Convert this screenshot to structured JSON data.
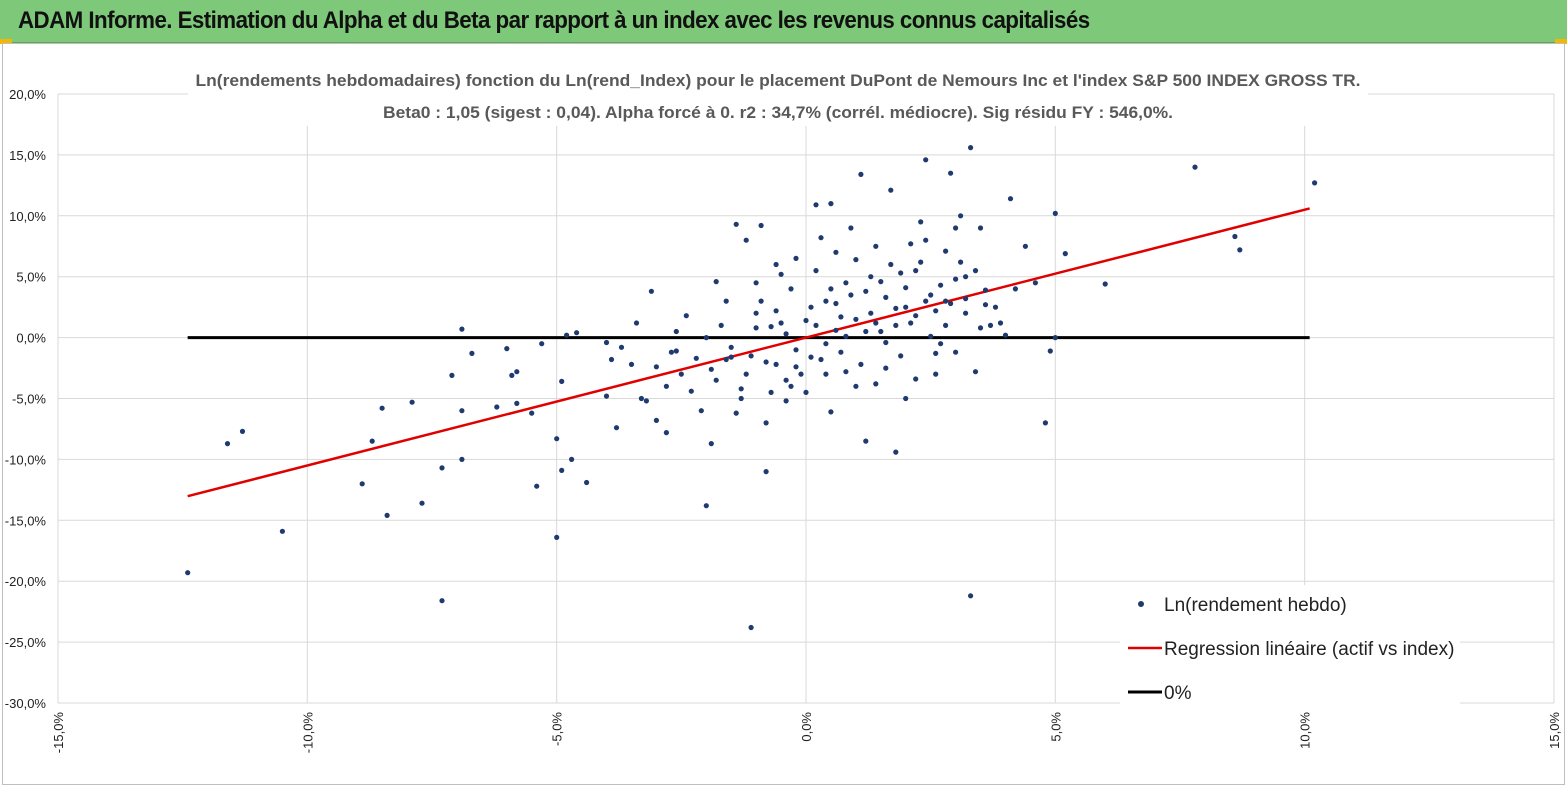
{
  "banner": {
    "title": "ADAM Informe. Estimation du Alpha et du Beta par rapport à un index avec les revenus connus capitalisés"
  },
  "colors": {
    "banner_bg": "#7ec87a",
    "accent": "#f2b705",
    "points": "#1f3a6e",
    "regression": "#e00000",
    "zero_line": "#000000",
    "grid": "#d9d9d9"
  },
  "chart_data": {
    "type": "scatter",
    "title": "Ln(rendements hebdomadaires) fonction du Ln(rend_Index) pour le placement DuPont de Nemours Inc et l'index S&P 500 INDEX GROSS TR.",
    "subtitle": "Beta0 : 1,05  (sigest : 0,04). Alpha forcé à 0. r2 : 34,7% (corrél. médiocre). Sig résidu FY : 546,0%.",
    "xlim": [
      -0.15,
      0.15
    ],
    "ylim": [
      -0.3,
      0.2
    ],
    "x_ticks": [
      "-15,0%",
      "-10,0%",
      "-5,0%",
      "0,0%",
      "5,0%",
      "10,0%",
      "15,0%"
    ],
    "y_ticks": [
      "20,0%",
      "15,0%",
      "10,0%",
      "5,0%",
      "0,0%",
      "-5,0%",
      "-10,0%",
      "-15,0%",
      "-20,0%",
      "-25,0%",
      "-30,0%"
    ],
    "grid": true,
    "legend_position": "bottom-right",
    "series": [
      {
        "name": "Ln(rendement hebdo)",
        "kind": "scatter",
        "points": [
          [
            -0.124,
            -0.193
          ],
          [
            -0.116,
            -0.087
          ],
          [
            -0.113,
            -0.077
          ],
          [
            -0.105,
            -0.159
          ],
          [
            -0.089,
            -0.12
          ],
          [
            -0.087,
            -0.085
          ],
          [
            -0.085,
            -0.058
          ],
          [
            -0.084,
            -0.146
          ],
          [
            -0.079,
            -0.053
          ],
          [
            -0.077,
            -0.136
          ],
          [
            -0.073,
            -0.216
          ],
          [
            -0.073,
            -0.107
          ],
          [
            -0.071,
            -0.031
          ],
          [
            -0.069,
            -0.06
          ],
          [
            -0.069,
            0.007
          ],
          [
            -0.069,
            -0.1
          ],
          [
            -0.067,
            -0.013
          ],
          [
            -0.062,
            -0.057
          ],
          [
            -0.06,
            -0.009
          ],
          [
            -0.059,
            -0.031
          ],
          [
            -0.058,
            -0.028
          ],
          [
            -0.058,
            -0.054
          ],
          [
            -0.055,
            -0.062
          ],
          [
            -0.054,
            -0.122
          ],
          [
            -0.053,
            -0.005
          ],
          [
            -0.05,
            -0.083
          ],
          [
            -0.05,
            -0.164
          ],
          [
            -0.049,
            -0.036
          ],
          [
            -0.049,
            -0.109
          ],
          [
            -0.048,
            0.002
          ],
          [
            -0.047,
            -0.1
          ],
          [
            -0.046,
            0.004
          ],
          [
            -0.044,
            -0.119
          ],
          [
            -0.04,
            -0.004
          ],
          [
            -0.039,
            -0.018
          ],
          [
            -0.038,
            -0.074
          ],
          [
            -0.034,
            0.012
          ],
          [
            -0.033,
            -0.05
          ],
          [
            -0.031,
            0.038
          ],
          [
            -0.03,
            -0.024
          ],
          [
            -0.028,
            -0.078
          ],
          [
            -0.026,
            -0.011
          ],
          [
            -0.024,
            0.018
          ],
          [
            -0.02,
            -0.138
          ],
          [
            -0.019,
            -0.087
          ],
          [
            -0.018,
            0.046
          ],
          [
            -0.016,
            -0.018
          ],
          [
            -0.015,
            -0.016
          ],
          [
            -0.014,
            0.093
          ],
          [
            -0.013,
            -0.05
          ],
          [
            -0.012,
            0.08
          ],
          [
            -0.011,
            -0.238
          ],
          [
            -0.01,
            0.02
          ],
          [
            -0.009,
            0.092
          ],
          [
            -0.008,
            -0.11
          ],
          [
            -0.007,
            0.009
          ],
          [
            -0.006,
            -0.022
          ],
          [
            -0.005,
            0.052
          ],
          [
            -0.004,
            -0.052
          ],
          [
            -0.003,
            -0.04
          ],
          [
            -0.002,
            -0.024
          ],
          [
            0.0,
            0.014
          ],
          [
            0.001,
            -0.016
          ],
          [
            0.002,
            0.109
          ],
          [
            0.003,
            0.082
          ],
          [
            0.004,
            0.03
          ],
          [
            0.005,
            0.11
          ],
          [
            0.005,
            -0.061
          ],
          [
            0.006,
            0.006
          ],
          [
            0.007,
            0.017
          ],
          [
            0.008,
            -0.028
          ],
          [
            0.009,
            0.09
          ],
          [
            0.01,
            0.064
          ],
          [
            0.011,
            0.134
          ],
          [
            0.012,
            -0.085
          ],
          [
            0.013,
            0.02
          ],
          [
            0.014,
            -0.038
          ],
          [
            0.015,
            0.046
          ],
          [
            0.016,
            0.033
          ],
          [
            0.017,
            0.121
          ],
          [
            0.018,
            -0.094
          ],
          [
            0.019,
            0.053
          ],
          [
            0.02,
            0.025
          ],
          [
            0.021,
            0.077
          ],
          [
            0.022,
            -0.034
          ],
          [
            0.023,
            0.095
          ],
          [
            0.024,
            0.146
          ],
          [
            0.025,
            0.001
          ],
          [
            0.026,
            -0.013
          ],
          [
            0.027,
            0.043
          ],
          [
            0.028,
            0.071
          ],
          [
            0.029,
            0.135
          ],
          [
            0.03,
            -0.012
          ],
          [
            0.031,
            0.1
          ],
          [
            0.032,
            0.032
          ],
          [
            0.033,
            -0.212
          ],
          [
            0.033,
            0.156
          ],
          [
            0.034,
            -0.028
          ],
          [
            0.035,
            0.09
          ],
          [
            0.036,
            0.039
          ],
          [
            0.037,
            0.01
          ],
          [
            0.039,
            0.012
          ],
          [
            0.04,
            0.002
          ],
          [
            0.041,
            0.114
          ],
          [
            0.042,
            0.04
          ],
          [
            0.044,
            0.075
          ],
          [
            0.046,
            0.045
          ],
          [
            0.048,
            -0.07
          ],
          [
            0.049,
            -0.011
          ],
          [
            0.05,
            0.102
          ],
          [
            0.05,
            0.0
          ],
          [
            0.052,
            0.069
          ],
          [
            0.06,
            0.044
          ],
          [
            0.078,
            0.14
          ],
          [
            0.086,
            0.083
          ],
          [
            0.087,
            0.072
          ],
          [
            0.102,
            0.127
          ],
          [
            -0.028,
            -0.04
          ],
          [
            -0.025,
            -0.03
          ],
          [
            -0.022,
            -0.017
          ],
          [
            -0.02,
            0.0
          ],
          [
            -0.018,
            -0.035
          ],
          [
            -0.015,
            -0.008
          ],
          [
            -0.012,
            -0.03
          ],
          [
            -0.01,
            0.008
          ],
          [
            -0.008,
            -0.02
          ],
          [
            -0.006,
            0.022
          ],
          [
            -0.004,
            0.003
          ],
          [
            -0.002,
            -0.01
          ],
          [
            0.002,
            0.01
          ],
          [
            0.004,
            -0.005
          ],
          [
            0.006,
            0.028
          ],
          [
            0.008,
            0.001
          ],
          [
            0.01,
            0.015
          ],
          [
            0.012,
            0.038
          ],
          [
            0.014,
            0.012
          ],
          [
            0.016,
            -0.004
          ],
          [
            0.018,
            0.024
          ],
          [
            0.02,
            0.041
          ],
          [
            0.022,
            0.018
          ],
          [
            0.024,
            0.03
          ],
          [
            0.026,
            0.022
          ],
          [
            0.028,
            0.01
          ],
          [
            0.03,
            0.048
          ],
          [
            0.032,
            0.02
          ],
          [
            0.034,
            0.055
          ],
          [
            0.036,
            0.027
          ],
          [
            -0.035,
            -0.022
          ],
          [
            -0.032,
            -0.052
          ],
          [
            -0.027,
            -0.012
          ],
          [
            -0.023,
            -0.044
          ],
          [
            -0.019,
            -0.026
          ],
          [
            -0.017,
            0.01
          ],
          [
            -0.013,
            -0.042
          ],
          [
            -0.011,
            -0.015
          ],
          [
            -0.009,
            0.03
          ],
          [
            -0.007,
            -0.045
          ],
          [
            -0.005,
            0.012
          ],
          [
            -0.003,
            0.04
          ],
          [
            -0.001,
            -0.03
          ],
          [
            0.001,
            0.025
          ],
          [
            0.003,
            -0.018
          ],
          [
            0.005,
            0.04
          ],
          [
            0.007,
            -0.012
          ],
          [
            0.009,
            0.035
          ],
          [
            0.011,
            -0.022
          ],
          [
            0.013,
            0.05
          ],
          [
            0.015,
            0.005
          ],
          [
            0.017,
            0.06
          ],
          [
            0.019,
            -0.015
          ],
          [
            0.021,
            0.012
          ],
          [
            0.023,
            0.062
          ],
          [
            0.025,
            0.035
          ],
          [
            0.027,
            -0.005
          ],
          [
            0.029,
            0.028
          ],
          [
            0.031,
            0.062
          ],
          [
            0.035,
            0.008
          ],
          [
            -0.04,
            -0.048
          ],
          [
            -0.037,
            -0.008
          ],
          [
            -0.03,
            -0.068
          ],
          [
            -0.026,
            0.005
          ],
          [
            -0.021,
            -0.06
          ],
          [
            -0.016,
            0.03
          ],
          [
            -0.014,
            -0.062
          ],
          [
            -0.01,
            0.045
          ],
          [
            -0.008,
            -0.07
          ],
          [
            -0.006,
            0.06
          ],
          [
            -0.004,
            -0.035
          ],
          [
            -0.002,
            0.065
          ],
          [
            0.0,
            -0.045
          ],
          [
            0.002,
            0.055
          ],
          [
            0.004,
            -0.03
          ],
          [
            0.006,
            0.07
          ],
          [
            0.008,
            0.045
          ],
          [
            0.01,
            -0.04
          ],
          [
            0.012,
            0.005
          ],
          [
            0.014,
            0.075
          ],
          [
            0.016,
            -0.025
          ],
          [
            0.018,
            0.01
          ],
          [
            0.02,
            -0.05
          ],
          [
            0.022,
            0.055
          ],
          [
            0.024,
            0.08
          ],
          [
            0.026,
            -0.03
          ],
          [
            0.028,
            0.03
          ],
          [
            0.03,
            0.09
          ],
          [
            0.032,
            0.05
          ],
          [
            0.038,
            0.025
          ]
        ]
      },
      {
        "name": "Regression linéaire (actif vs index)",
        "kind": "line",
        "beta": 1.05,
        "x_range": [
          -0.124,
          0.101
        ]
      },
      {
        "name": "0%",
        "kind": "line",
        "y": 0.0,
        "x_range": [
          -0.124,
          0.101
        ]
      }
    ]
  }
}
